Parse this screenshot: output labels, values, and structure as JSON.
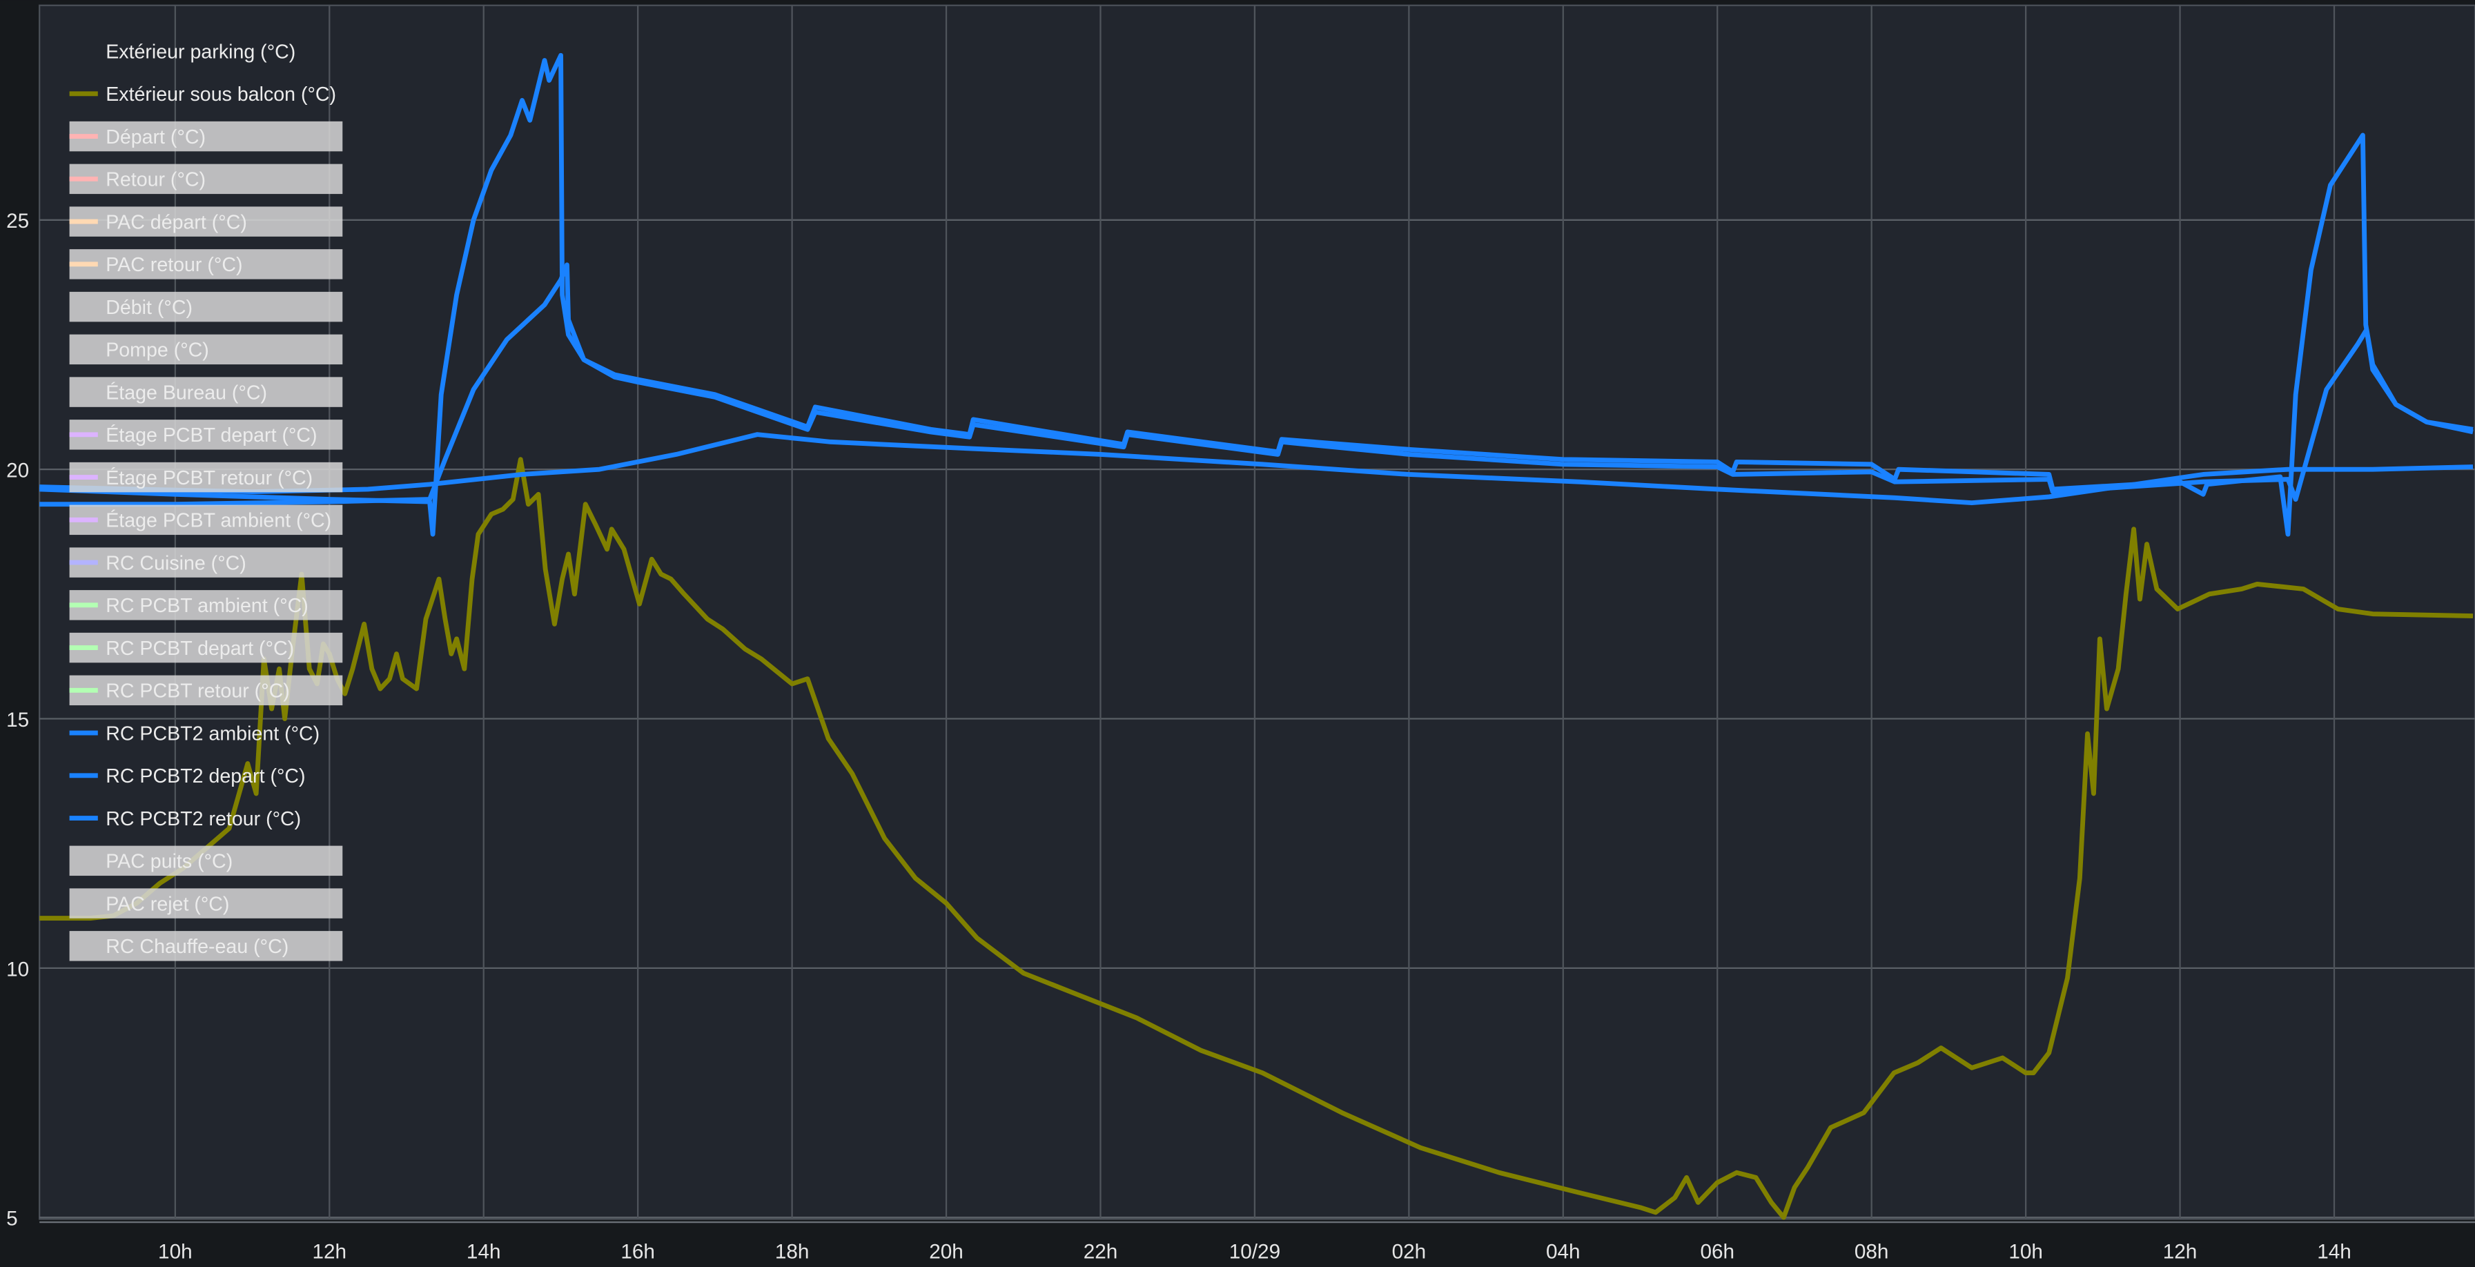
{
  "chart_data": {
    "type": "line",
    "title": "",
    "xlabel": "",
    "ylabel": "",
    "x_unit": "hours since 10/28 00:00",
    "xlim": [
      8.24,
      39.8
    ],
    "ylim": [
      4.95,
      29.3
    ],
    "grid": true,
    "legend_placement": "top-left",
    "y_ticks": [
      {
        "v": 5,
        "label": "5"
      },
      {
        "v": 10,
        "label": "10"
      },
      {
        "v": 15,
        "label": "15"
      },
      {
        "v": 20,
        "label": "20"
      },
      {
        "v": 25,
        "label": "25"
      }
    ],
    "x_ticks": [
      {
        "v": 10,
        "label": "10h"
      },
      {
        "v": 12,
        "label": "12h"
      },
      {
        "v": 14,
        "label": "14h"
      },
      {
        "v": 16,
        "label": "16h"
      },
      {
        "v": 18,
        "label": "18h"
      },
      {
        "v": 20,
        "label": "20h"
      },
      {
        "v": 22,
        "label": "22h"
      },
      {
        "v": 24,
        "label": "10/29"
      },
      {
        "v": 26,
        "label": "02h"
      },
      {
        "v": 28,
        "label": "04h"
      },
      {
        "v": 30,
        "label": "06h"
      },
      {
        "v": 32,
        "label": "08h"
      },
      {
        "v": 34,
        "label": "10h"
      },
      {
        "v": 36,
        "label": "12h"
      },
      {
        "v": 38,
        "label": "14h"
      }
    ],
    "legend": [
      {
        "name": "Extérieur parking (°C)",
        "color": "",
        "hidden": false
      },
      {
        "name": "Extérieur sous balcon (°C)",
        "color": "#808000",
        "hidden": false
      },
      {
        "name": "Départ (°C)",
        "color": "#ffb3b3",
        "hidden": true
      },
      {
        "name": "Retour (°C)",
        "color": "#ffb3b3",
        "hidden": true
      },
      {
        "name": "PAC départ (°C)",
        "color": "#ffd9b3",
        "hidden": true
      },
      {
        "name": "PAC retour (°C)",
        "color": "#ffd9b3",
        "hidden": true
      },
      {
        "name": "Débit (°C)",
        "color": "",
        "hidden": true
      },
      {
        "name": "Pompe (°C)",
        "color": "",
        "hidden": true
      },
      {
        "name": "Étage Bureau (°C)",
        "color": "",
        "hidden": true
      },
      {
        "name": "Étage PCBT depart (°C)",
        "color": "#dcb3ff",
        "hidden": true
      },
      {
        "name": "Étage PCBT retour (°C)",
        "color": "#dcb3ff",
        "hidden": true
      },
      {
        "name": "Étage PCBT ambient (°C)",
        "color": "#dcb3ff",
        "hidden": true
      },
      {
        "name": "RC Cuisine (°C)",
        "color": "#b3b3ff",
        "hidden": true
      },
      {
        "name": "RC PCBT ambient (°C)",
        "color": "#b3ffb3",
        "hidden": true
      },
      {
        "name": "RC PCBT depart (°C)",
        "color": "#b3ffb3",
        "hidden": true
      },
      {
        "name": "RC PCBT retour (°C)",
        "color": "#b3ffb3",
        "hidden": true
      },
      {
        "name": "RC PCBT2 ambient (°C)",
        "color": "#1a82ff",
        "hidden": false
      },
      {
        "name": "RC PCBT2 depart (°C)",
        "color": "#1a82ff",
        "hidden": false
      },
      {
        "name": "RC PCBT2 retour (°C)",
        "color": "#1a82ff",
        "hidden": false
      },
      {
        "name": "PAC puits (°C)",
        "color": "",
        "hidden": true
      },
      {
        "name": "PAC rejet (°C)",
        "color": "",
        "hidden": true
      },
      {
        "name": "RC Chauffe-eau (°C)",
        "color": "",
        "hidden": true
      }
    ],
    "series": [
      {
        "name": "Extérieur sous balcon (°C)",
        "color": "#808000",
        "points": [
          [
            8.24,
            11.0
          ],
          [
            8.9,
            11.0
          ],
          [
            9.2,
            11.05
          ],
          [
            9.5,
            11.3
          ],
          [
            9.8,
            11.7
          ],
          [
            10.1,
            12.0
          ],
          [
            10.4,
            12.4
          ],
          [
            10.7,
            12.8
          ],
          [
            10.94,
            14.1
          ],
          [
            11.05,
            13.5
          ],
          [
            11.15,
            16.2
          ],
          [
            11.25,
            15.2
          ],
          [
            11.35,
            16.0
          ],
          [
            11.42,
            15.0
          ],
          [
            11.52,
            16.4
          ],
          [
            11.64,
            17.9
          ],
          [
            11.74,
            16.0
          ],
          [
            11.84,
            15.7
          ],
          [
            11.92,
            16.5
          ],
          [
            12.0,
            16.3
          ],
          [
            12.1,
            15.8
          ],
          [
            12.2,
            15.5
          ],
          [
            12.3,
            16.0
          ],
          [
            12.45,
            16.9
          ],
          [
            12.55,
            16.0
          ],
          [
            12.66,
            15.6
          ],
          [
            12.78,
            15.8
          ],
          [
            12.87,
            16.3
          ],
          [
            12.95,
            15.8
          ],
          [
            13.13,
            15.6
          ],
          [
            13.25,
            17.0
          ],
          [
            13.42,
            17.8
          ],
          [
            13.5,
            17.0
          ],
          [
            13.58,
            16.3
          ],
          [
            13.65,
            16.6
          ],
          [
            13.75,
            16.0
          ],
          [
            13.85,
            17.8
          ],
          [
            13.93,
            18.7
          ],
          [
            14.1,
            19.1
          ],
          [
            14.25,
            19.2
          ],
          [
            14.38,
            19.4
          ],
          [
            14.48,
            20.2
          ],
          [
            14.58,
            19.3
          ],
          [
            14.71,
            19.5
          ],
          [
            14.8,
            18.0
          ],
          [
            14.92,
            16.9
          ],
          [
            15.02,
            17.8
          ],
          [
            15.1,
            18.3
          ],
          [
            15.18,
            17.5
          ],
          [
            15.32,
            19.3
          ],
          [
            15.45,
            18.9
          ],
          [
            15.6,
            18.4
          ],
          [
            15.66,
            18.8
          ],
          [
            15.82,
            18.4
          ],
          [
            16.02,
            17.3
          ],
          [
            16.18,
            18.2
          ],
          [
            16.3,
            17.9
          ],
          [
            16.43,
            17.8
          ],
          [
            16.6,
            17.5
          ],
          [
            16.9,
            17.0
          ],
          [
            17.1,
            16.8
          ],
          [
            17.39,
            16.4
          ],
          [
            17.6,
            16.2
          ],
          [
            18.0,
            15.7
          ],
          [
            18.2,
            15.8
          ],
          [
            18.47,
            14.6
          ],
          [
            18.78,
            13.9
          ],
          [
            19.2,
            12.6
          ],
          [
            19.6,
            11.8
          ],
          [
            20.0,
            11.3
          ],
          [
            20.4,
            10.6
          ],
          [
            21.0,
            9.9
          ],
          [
            21.65,
            9.5
          ],
          [
            22.47,
            9.0
          ],
          [
            23.3,
            8.35
          ],
          [
            24.1,
            7.9
          ],
          [
            25.13,
            7.1
          ],
          [
            26.15,
            6.4
          ],
          [
            27.17,
            5.9
          ],
          [
            28.2,
            5.5
          ],
          [
            29.0,
            5.2
          ],
          [
            29.2,
            5.1
          ],
          [
            29.45,
            5.4
          ],
          [
            29.6,
            5.8
          ],
          [
            29.75,
            5.3
          ],
          [
            30.0,
            5.7
          ],
          [
            30.25,
            5.9
          ],
          [
            30.5,
            5.8
          ],
          [
            30.7,
            5.3
          ],
          [
            30.86,
            5.0
          ],
          [
            31.0,
            5.6
          ],
          [
            31.17,
            6.0
          ],
          [
            31.47,
            6.8
          ],
          [
            31.9,
            7.1
          ],
          [
            32.29,
            7.9
          ],
          [
            32.6,
            8.1
          ],
          [
            32.9,
            8.4
          ],
          [
            33.3,
            8.0
          ],
          [
            33.7,
            8.2
          ],
          [
            34.0,
            7.9
          ],
          [
            34.1,
            7.9
          ],
          [
            34.3,
            8.3
          ],
          [
            34.54,
            9.8
          ],
          [
            34.7,
            11.8
          ],
          [
            34.8,
            14.7
          ],
          [
            34.88,
            13.5
          ],
          [
            34.96,
            16.6
          ],
          [
            35.05,
            15.2
          ],
          [
            35.2,
            16.0
          ],
          [
            35.3,
            17.5
          ],
          [
            35.4,
            18.8
          ],
          [
            35.48,
            17.4
          ],
          [
            35.57,
            18.5
          ],
          [
            35.7,
            17.6
          ],
          [
            35.97,
            17.2
          ],
          [
            36.38,
            17.5
          ],
          [
            36.8,
            17.6
          ],
          [
            37.0,
            17.7
          ],
          [
            37.6,
            17.6
          ],
          [
            38.05,
            17.2
          ],
          [
            38.5,
            17.1
          ],
          [
            39.8,
            17.06
          ]
        ]
      },
      {
        "name": "RC PCBT2 ambient (°C)",
        "color": "#1a82ff",
        "points": [
          [
            8.24,
            19.65
          ],
          [
            9.5,
            19.6
          ],
          [
            11.0,
            19.55
          ],
          [
            12.5,
            19.6
          ],
          [
            13.3,
            19.7
          ],
          [
            14.5,
            19.9
          ],
          [
            15.5,
            20.0
          ],
          [
            16.5,
            20.3
          ],
          [
            17.55,
            20.7
          ],
          [
            18.5,
            20.55
          ],
          [
            20.0,
            20.44
          ],
          [
            22.0,
            20.3
          ],
          [
            24.1,
            20.1
          ],
          [
            26.0,
            19.9
          ],
          [
            28.2,
            19.75
          ],
          [
            30.0,
            19.6
          ],
          [
            32.3,
            19.43
          ],
          [
            33.3,
            19.33
          ],
          [
            34.3,
            19.45
          ],
          [
            36.3,
            19.9
          ],
          [
            37.4,
            20.0
          ],
          [
            38.5,
            20.0
          ],
          [
            39.8,
            20.05
          ]
        ]
      },
      {
        "name": "RC PCBT2 depart (°C)",
        "color": "#1a82ff",
        "points": [
          [
            8.24,
            19.6
          ],
          [
            10.0,
            19.5
          ],
          [
            12.0,
            19.4
          ],
          [
            13.3,
            19.35
          ],
          [
            13.34,
            18.7
          ],
          [
            13.45,
            21.5
          ],
          [
            13.65,
            23.5
          ],
          [
            13.87,
            25.0
          ],
          [
            14.1,
            26.0
          ],
          [
            14.35,
            26.7
          ],
          [
            14.5,
            27.4
          ],
          [
            14.6,
            27.0
          ],
          [
            14.79,
            28.2
          ],
          [
            14.85,
            27.8
          ],
          [
            15.0,
            28.3
          ],
          [
            15.02,
            23.5
          ],
          [
            15.1,
            22.7
          ],
          [
            15.3,
            22.2
          ],
          [
            15.7,
            21.9
          ],
          [
            16.0,
            21.8
          ],
          [
            17.0,
            21.5
          ],
          [
            18.2,
            20.85
          ],
          [
            18.3,
            21.25
          ],
          [
            19.8,
            20.8
          ],
          [
            20.3,
            20.7
          ],
          [
            20.35,
            21.0
          ],
          [
            22.3,
            20.5
          ],
          [
            22.35,
            20.75
          ],
          [
            24.3,
            20.35
          ],
          [
            24.35,
            20.6
          ],
          [
            26.0,
            20.4
          ],
          [
            28.0,
            20.2
          ],
          [
            30.0,
            20.15
          ],
          [
            30.2,
            19.95
          ],
          [
            30.25,
            20.15
          ],
          [
            32.0,
            20.1
          ],
          [
            32.3,
            19.8
          ],
          [
            32.35,
            20.0
          ],
          [
            34.3,
            19.9
          ],
          [
            34.35,
            19.6
          ],
          [
            36.0,
            19.75
          ],
          [
            36.3,
            19.5
          ],
          [
            36.35,
            19.7
          ],
          [
            37.3,
            19.85
          ],
          [
            37.4,
            18.7
          ],
          [
            37.5,
            21.5
          ],
          [
            37.7,
            24.0
          ],
          [
            37.95,
            25.7
          ],
          [
            38.37,
            26.7
          ],
          [
            38.41,
            22.9
          ],
          [
            38.5,
            22.1
          ],
          [
            38.8,
            21.3
          ],
          [
            39.2,
            20.95
          ],
          [
            39.8,
            20.8
          ]
        ]
      },
      {
        "name": "RC PCBT2 retour (°C)",
        "color": "#1a82ff",
        "points": [
          [
            8.24,
            19.3
          ],
          [
            10.0,
            19.3
          ],
          [
            12.0,
            19.35
          ],
          [
            13.3,
            19.4
          ],
          [
            13.5,
            20.2
          ],
          [
            13.87,
            21.6
          ],
          [
            14.3,
            22.6
          ],
          [
            14.79,
            23.3
          ],
          [
            15.0,
            23.8
          ],
          [
            15.08,
            24.1
          ],
          [
            15.1,
            23.0
          ],
          [
            15.3,
            22.2
          ],
          [
            15.7,
            21.85
          ],
          [
            16.0,
            21.75
          ],
          [
            17.0,
            21.45
          ],
          [
            18.2,
            20.8
          ],
          [
            18.3,
            21.15
          ],
          [
            19.8,
            20.75
          ],
          [
            20.3,
            20.65
          ],
          [
            20.35,
            20.9
          ],
          [
            22.3,
            20.45
          ],
          [
            22.35,
            20.7
          ],
          [
            24.3,
            20.3
          ],
          [
            24.35,
            20.55
          ],
          [
            26.0,
            20.3
          ],
          [
            28.0,
            20.1
          ],
          [
            30.0,
            20.05
          ],
          [
            30.2,
            19.9
          ],
          [
            32.0,
            19.95
          ],
          [
            32.3,
            19.75
          ],
          [
            34.3,
            19.8
          ],
          [
            34.35,
            19.55
          ],
          [
            36.3,
            19.75
          ],
          [
            37.4,
            19.8
          ],
          [
            37.5,
            19.4
          ],
          [
            37.9,
            21.6
          ],
          [
            38.3,
            22.5
          ],
          [
            38.42,
            22.8
          ],
          [
            38.5,
            22.0
          ],
          [
            38.8,
            21.3
          ],
          [
            39.2,
            20.95
          ],
          [
            39.8,
            20.75
          ]
        ]
      }
    ]
  }
}
